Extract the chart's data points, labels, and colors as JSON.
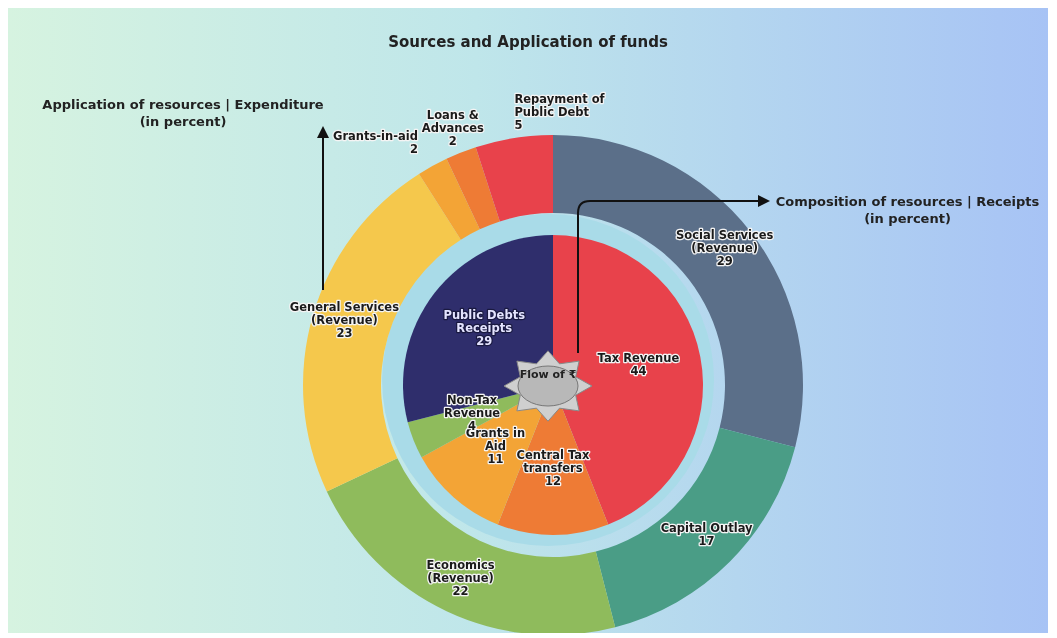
{
  "chart_data": [
    {
      "type": "donut",
      "title": "Sources and Application of funds",
      "annotations": [
        "Application of resources | Expenditure\n(in percent)"
      ],
      "data_labels": true,
      "categories": [
        "Social Services (Revenue)",
        "Capital Outlay",
        "Economics (Revenue)",
        "General Services (Revenue)",
        "Grants-in-aid",
        "Loans & Advances",
        "Repayment of Public Debt"
      ],
      "values": [
        29,
        17,
        22,
        23,
        2,
        2,
        5
      ],
      "colors": [
        "#5b6f89",
        "#4a9d86",
        "#8fbb5c",
        "#f5c84c",
        "#f3a436",
        "#ee7b35",
        "#e8424b"
      ]
    },
    {
      "type": "pie",
      "annotations": [
        "Composition of resources | Receipts\n(in percent)",
        "Flow of ₹"
      ],
      "data_labels": true,
      "categories": [
        "Tax Revenue",
        "Central Tax transfers",
        "Grants in Aid",
        "Non-Tax Revenue",
        "Public Debts Receipts"
      ],
      "values": [
        44,
        12,
        11,
        4,
        29
      ],
      "colors": [
        "#e8424b",
        "#ee7b35",
        "#f3a436",
        "#8fbb5c",
        "#2f2e6c"
      ]
    }
  ]
}
